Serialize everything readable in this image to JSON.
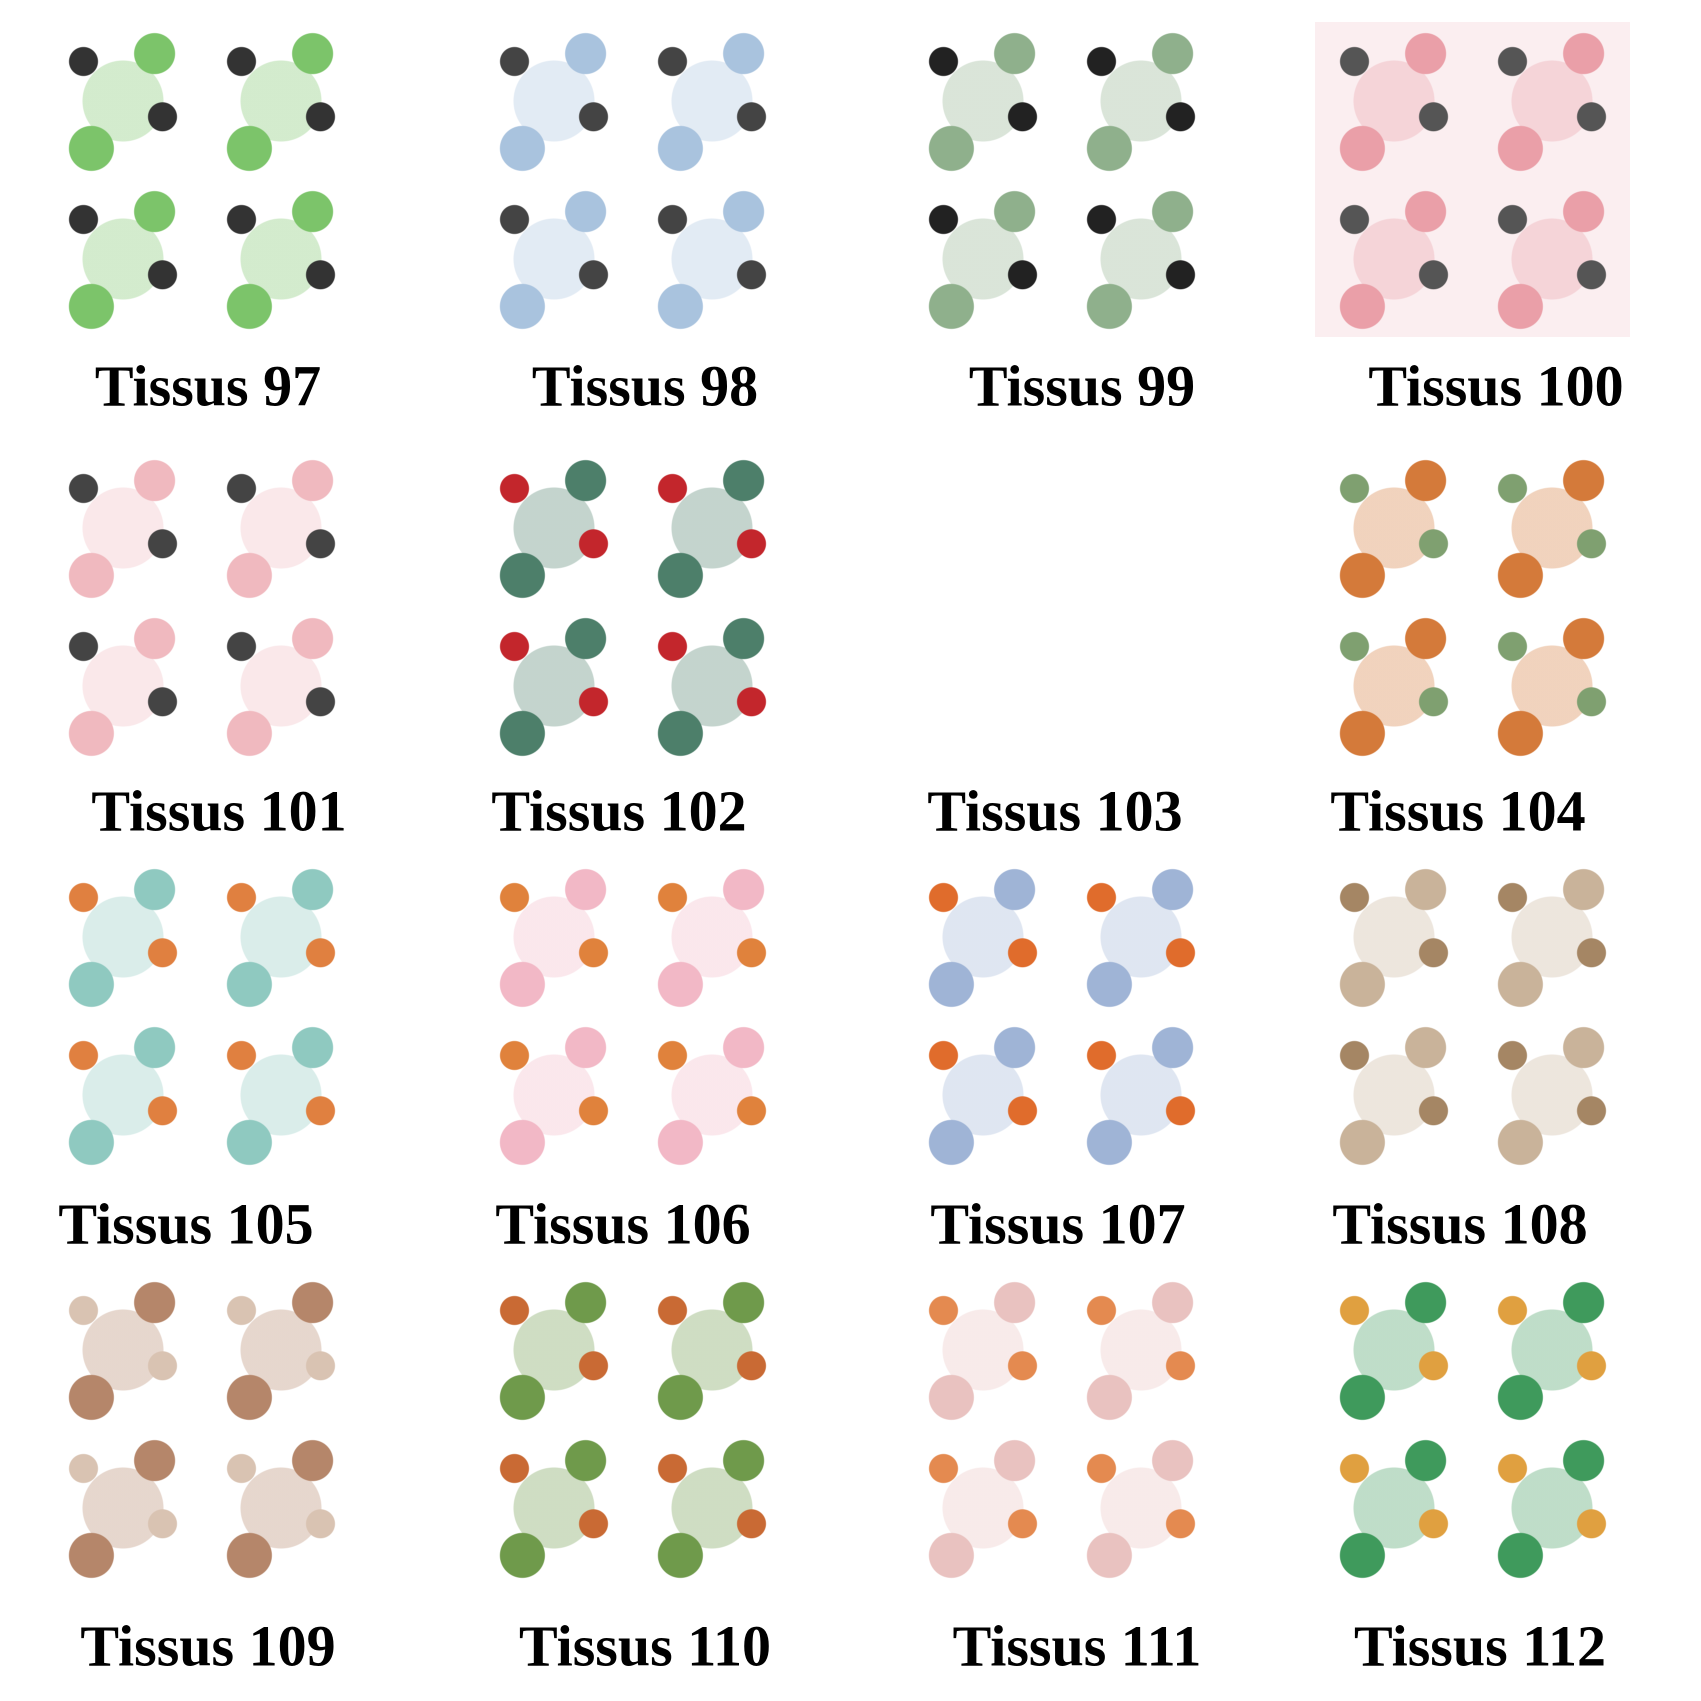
{
  "items": [
    {
      "label": "Tissus 97"
    },
    {
      "label": "Tissus 98"
    },
    {
      "label": "Tissus 99"
    },
    {
      "label": "Tissus 100"
    },
    {
      "label": "Tissus 101"
    },
    {
      "label": "Tissus 102"
    },
    {
      "label": "Tissus 103"
    },
    {
      "label": "Tissus 104"
    },
    {
      "label": "Tissus 105"
    },
    {
      "label": "Tissus 106"
    },
    {
      "label": "Tissus 107"
    },
    {
      "label": "Tissus 108"
    },
    {
      "label": "Tissus 109"
    },
    {
      "label": "Tissus 110"
    },
    {
      "label": "Tissus 111"
    },
    {
      "label": "Tissus 112"
    }
  ]
}
